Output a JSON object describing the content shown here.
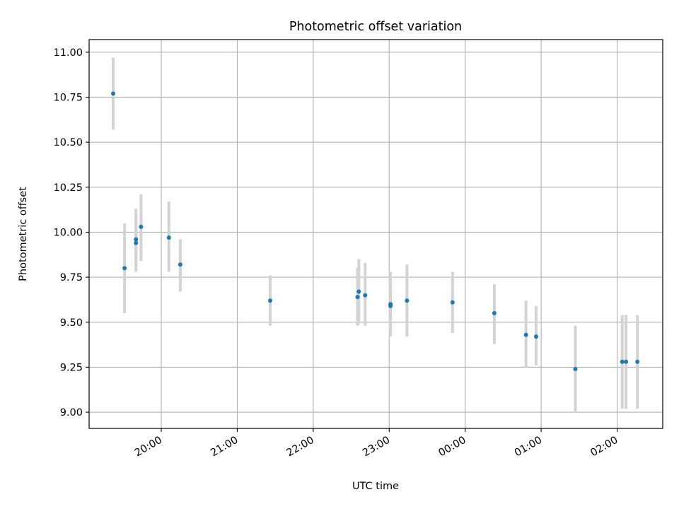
{
  "chart_data": {
    "type": "scatter",
    "title": "Photometric offset variation",
    "xlabel": "UTC time",
    "ylabel": "Photometric offset",
    "grid": true,
    "colors": {
      "points": "#1f77b4",
      "error_bars": "#d3d3d3",
      "grid": "#b0b0b0"
    },
    "x_ticks": [
      "20:00",
      "21:00",
      "22:00",
      "23:00",
      "00:00",
      "01:00",
      "02:00"
    ],
    "x_tick_hours": [
      0,
      1,
      2,
      3,
      4,
      5,
      6
    ],
    "x_range_hours": [
      -0.95,
      6.6
    ],
    "y_ticks": [
      "9.00",
      "9.25",
      "9.50",
      "9.75",
      "10.00",
      "10.25",
      "10.50",
      "10.75",
      "11.00"
    ],
    "y_tick_values": [
      9.0,
      9.25,
      9.5,
      9.75,
      10.0,
      10.25,
      10.5,
      10.75,
      11.0
    ],
    "ylim": [
      8.91,
      11.07
    ],
    "points": [
      {
        "time": "19:22",
        "y": 10.77,
        "low": 10.57,
        "high": 10.97
      },
      {
        "time": "19:31",
        "y": 9.8,
        "low": 9.55,
        "high": 10.05
      },
      {
        "time": "19:40",
        "y": 9.94,
        "low": 9.78,
        "high": 10.1
      },
      {
        "time": "19:40",
        "y": 9.96,
        "low": 9.8,
        "high": 10.13
      },
      {
        "time": "19:44",
        "y": 10.03,
        "low": 9.84,
        "high": 10.21
      },
      {
        "time": "20:06",
        "y": 9.97,
        "low": 9.78,
        "high": 10.17
      },
      {
        "time": "20:15",
        "y": 9.82,
        "low": 9.67,
        "high": 9.96
      },
      {
        "time": "21:26",
        "y": 9.62,
        "low": 9.48,
        "high": 9.76
      },
      {
        "time": "22:35",
        "y": 9.64,
        "low": 9.48,
        "high": 9.8
      },
      {
        "time": "22:36",
        "y": 9.67,
        "low": 9.49,
        "high": 9.85
      },
      {
        "time": "22:41",
        "y": 9.65,
        "low": 9.48,
        "high": 9.83
      },
      {
        "time": "23:01",
        "y": 9.6,
        "low": 9.43,
        "high": 9.78
      },
      {
        "time": "23:01",
        "y": 9.59,
        "low": 9.42,
        "high": 9.77
      },
      {
        "time": "23:14",
        "y": 9.62,
        "low": 9.42,
        "high": 9.82
      },
      {
        "time": "23:50",
        "y": 9.61,
        "low": 9.44,
        "high": 9.78
      },
      {
        "time": "00:23",
        "y": 9.55,
        "low": 9.38,
        "high": 9.71
      },
      {
        "time": "00:48",
        "y": 9.43,
        "low": 9.25,
        "high": 9.62
      },
      {
        "time": "00:56",
        "y": 9.42,
        "low": 9.26,
        "high": 9.59
      },
      {
        "time": "01:27",
        "y": 9.24,
        "low": 9.0,
        "high": 9.48
      },
      {
        "time": "02:04",
        "y": 9.28,
        "low": 9.02,
        "high": 9.54
      },
      {
        "time": "02:07",
        "y": 9.28,
        "low": 9.02,
        "high": 9.54
      },
      {
        "time": "02:16",
        "y": 9.28,
        "low": 9.02,
        "high": 9.54
      }
    ]
  }
}
